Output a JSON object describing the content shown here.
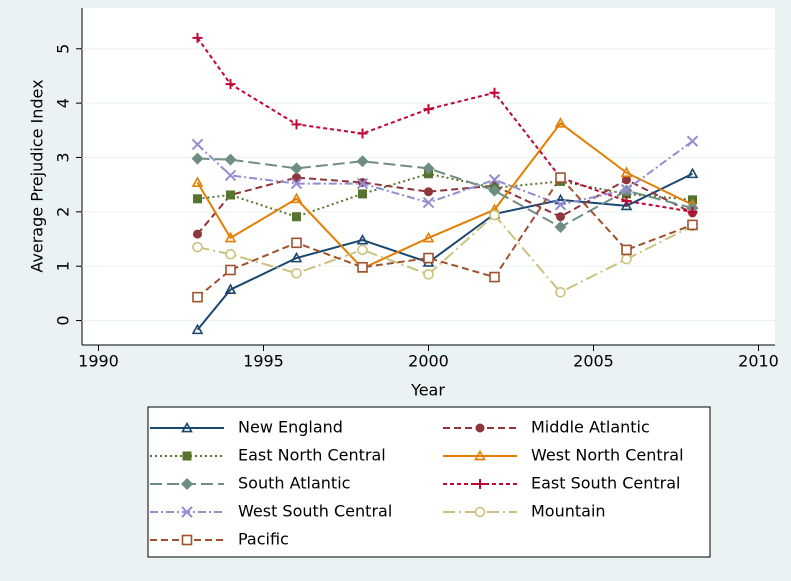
{
  "chart_data": {
    "type": "line",
    "x_label": "Year",
    "y_label": "Average Prejudice Index",
    "x": [
      1993,
      1994,
      1996,
      1998,
      2000,
      2002,
      2004,
      2006,
      2008
    ],
    "xlim": [
      1989.5,
      2010.5
    ],
    "xticks": [
      1990,
      1995,
      2000,
      2005,
      2010
    ],
    "ylim": [
      -0.45,
      5.75
    ],
    "yticks": [
      0,
      1,
      2,
      3,
      4,
      5
    ],
    "grid": true,
    "series": [
      {
        "name": "New England",
        "color": "#1a476f",
        "dash": "solid",
        "marker": "triangle",
        "values": [
          -0.17,
          0.57,
          1.15,
          1.48,
          1.07,
          1.96,
          2.22,
          2.11,
          2.7
        ]
      },
      {
        "name": "Middle Atlantic",
        "color": "#90353b",
        "dash": "dashed",
        "marker": "circle",
        "values": [
          1.59,
          2.31,
          2.63,
          2.54,
          2.37,
          2.48,
          1.91,
          2.59,
          1.98
        ]
      },
      {
        "name": "East North Central",
        "color": "#55752f",
        "dash": "dotted",
        "marker": "square",
        "values": [
          2.24,
          2.31,
          1.91,
          2.33,
          2.7,
          2.44,
          2.56,
          2.33,
          2.22
        ]
      },
      {
        "name": "West North Central",
        "color": "#e37e00",
        "dash": "solid",
        "marker": "triangle",
        "values": [
          2.54,
          1.52,
          2.24,
          0.96,
          1.52,
          2.04,
          3.63,
          2.72,
          2.13
        ]
      },
      {
        "name": "South Atlantic",
        "color": "#6e8e84",
        "dash": "longdash",
        "marker": "diamond",
        "values": [
          2.98,
          2.96,
          2.8,
          2.93,
          2.8,
          2.39,
          1.72,
          2.39,
          2.07
        ]
      },
      {
        "name": "East South Central",
        "color": "#c10534",
        "dash": "shortdash",
        "marker": "plus",
        "values": [
          5.2,
          4.35,
          3.61,
          3.44,
          3.89,
          4.19,
          2.63,
          2.2,
          2.0
        ]
      },
      {
        "name": "West South Central",
        "color": "#938dd2",
        "dash": "dashdot",
        "marker": "x",
        "values": [
          3.24,
          2.67,
          2.52,
          2.52,
          2.17,
          2.59,
          2.13,
          2.41,
          3.3
        ]
      },
      {
        "name": "Mountain",
        "color": "#cac27e",
        "dash": "longdashdot",
        "marker": "hollow-circle",
        "values": [
          1.35,
          1.22,
          0.87,
          1.3,
          0.85,
          1.94,
          0.52,
          1.13,
          1.74
        ]
      },
      {
        "name": "Pacific",
        "color": "#a0522d",
        "dash": "dashed",
        "marker": "hollow-square",
        "values": [
          0.43,
          0.93,
          1.43,
          0.98,
          1.15,
          0.8,
          2.63,
          1.3,
          1.76
        ]
      }
    ]
  }
}
